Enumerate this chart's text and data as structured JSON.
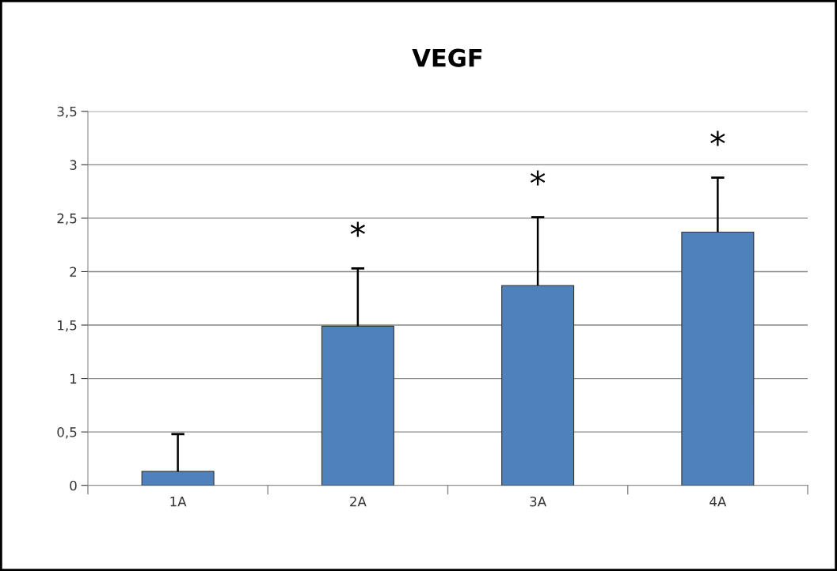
{
  "chart_data": {
    "type": "bar",
    "title": "VEGF",
    "categories": [
      "1A",
      "2A",
      "3A",
      "4A"
    ],
    "values": [
      0.13,
      1.49,
      1.87,
      2.37
    ],
    "errors": [
      [
        0.13,
        0.48
      ],
      [
        1.49,
        2.03
      ],
      [
        1.87,
        2.51
      ],
      [
        2.37,
        2.88
      ]
    ],
    "color": "#4f81bd",
    "ylim": [
      0,
      3.5
    ],
    "yticks": [
      0,
      {
        "value": 0.5,
        "label": "0,5"
      },
      1,
      {
        "value": 1.5,
        "label": "1,5"
      },
      2,
      {
        "value": 2.5,
        "label": "2,5"
      },
      3,
      {
        "value": 3.5,
        "label": "3,5"
      }
    ],
    "grid": "y",
    "legend": false,
    "annotations": [
      "*",
      "*",
      "*"
    ]
  }
}
